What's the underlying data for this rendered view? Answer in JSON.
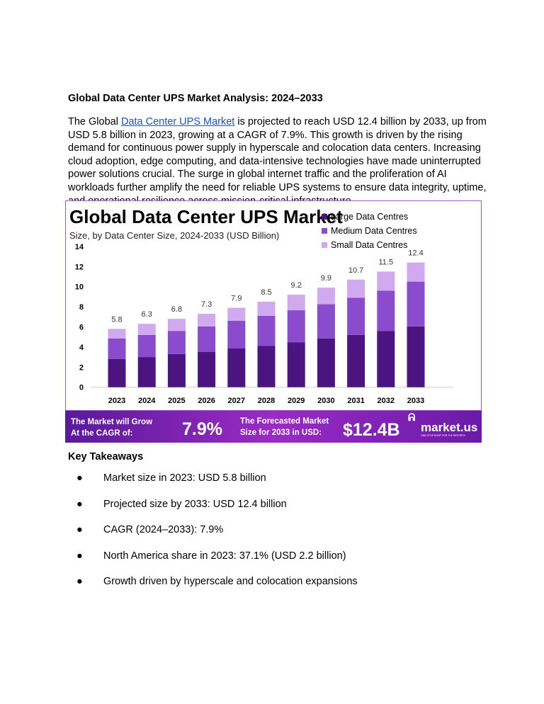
{
  "heading": "Global Data Center UPS Market Analysis: 2024–2033",
  "paragraph": {
    "before": "The Global ",
    "link": "Data Center UPS Market",
    "after": " is projected to reach USD 12.4 billion by 2033, up from USD 5.8 billion in 2023, growing at a CAGR of 7.9%. This growth is driven by the rising demand for continuous power supply in hyperscale and colocation data centers. Increasing cloud adoption, edge computing, and data-intensive technologies have made uninterrupted power solutions crucial. The surge in global internet traffic and the proliferation of AI workloads further amplify the need for reliable UPS systems to ensure data integrity, uptime, and operational resilience across mission-critical infrastructure."
  },
  "chart_data": {
    "type": "bar",
    "stacked": true,
    "title": "Global Data Center UPS Market",
    "subtitle": "Size, by Data Center Size, 2024-2033 (USD Billion)",
    "categories": [
      "2023",
      "2024",
      "2025",
      "2026",
      "2027",
      "2028",
      "2029",
      "2030",
      "2031",
      "2032",
      "2033"
    ],
    "yticks": [
      "0",
      "2",
      "4",
      "6",
      "8",
      "10",
      "12",
      "14"
    ],
    "ylim": [
      0,
      14
    ],
    "legend_placement": "top-right",
    "series": [
      {
        "name": "Large Data Centres",
        "color": "#4b1480",
        "values": [
          2.8,
          3.0,
          3.3,
          3.5,
          3.85,
          4.1,
          4.45,
          4.85,
          5.2,
          5.6,
          6.05
        ]
      },
      {
        "name": "Medium Data Centres",
        "color": "#8a4ccc",
        "values": [
          2.05,
          2.2,
          2.3,
          2.55,
          2.75,
          3.0,
          3.2,
          3.4,
          3.7,
          4.0,
          4.45
        ]
      },
      {
        "name": "Small Data Centres",
        "color": "#d1a9ee",
        "values": [
          0.95,
          1.1,
          1.2,
          1.25,
          1.3,
          1.4,
          1.55,
          1.65,
          1.8,
          1.9,
          1.9
        ]
      }
    ],
    "totals": [
      "5.8",
      "6.3",
      "6.8",
      "7.3",
      "7.9",
      "8.5",
      "9.2",
      "9.9",
      "10.7",
      "11.5",
      "12.4"
    ]
  },
  "banner": {
    "cagr_label_1": "The Market will Grow",
    "cagr_label_2": "At the CAGR of:",
    "cagr": "7.9%",
    "forecast_label_1": "The Forecasted Market",
    "forecast_label_2": "Size for 2033 in USD:",
    "forecast": "$12.4B",
    "logo": "market.us",
    "logo_tagline": "ONE STOP SHOP FOR THE REPORTS"
  },
  "takeaways": {
    "heading": "Key Takeaways",
    "items": [
      "Market size in 2023: USD 5.8 billion",
      "Projected size by 2033: USD 12.4 billion",
      "CAGR (2024–2033): 7.9%",
      "North America share in 2023: 37.1% (USD 2.2 billion)",
      "Growth driven by hyperscale and colocation expansions"
    ]
  }
}
